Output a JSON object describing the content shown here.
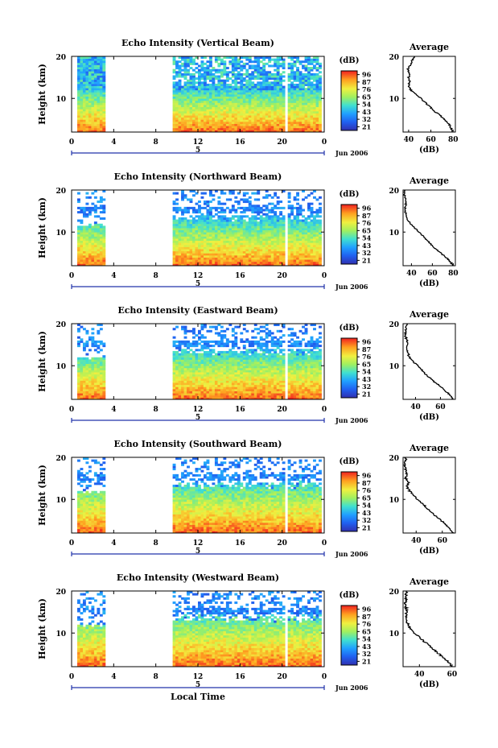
{
  "chart_data": [
    {
      "type": "heatmap",
      "title": "Echo Intensity (Vertical Beam)",
      "ylabel": "Height (km)",
      "xticks": [
        "0",
        "4",
        "8",
        "12",
        "16",
        "20",
        "0"
      ],
      "ylim": [
        2,
        20
      ],
      "yticks": [
        "20",
        "10"
      ],
      "date_label": "5",
      "month_label": "Jun 2006",
      "colorbar_unit": "(dB)",
      "colorbar_ticks": [
        "96",
        "87",
        "76",
        "65",
        "54",
        "43",
        "32",
        "21"
      ],
      "profile_title": "Average",
      "profile_xlabel": "(dB)",
      "profile_xticks": [
        "40",
        "60",
        "80"
      ],
      "profile_xlim": [
        35,
        82
      ],
      "profile_yticks": [
        "20",
        "10"
      ],
      "no_data_gaps": [
        [
          3.2,
          9.5
        ],
        [
          20.2,
          20.5
        ]
      ],
      "profile": {
        "height": [
          2,
          3,
          4,
          5,
          6,
          7,
          8,
          9,
          10,
          11,
          12,
          13,
          14,
          15,
          16,
          17,
          18,
          19,
          20
        ],
        "db": [
          80,
          78,
          76,
          72,
          68,
          63,
          59,
          55,
          51,
          46,
          42,
          40,
          41,
          40,
          41,
          39,
          42,
          43,
          45
        ]
      }
    },
    {
      "type": "heatmap",
      "title": "Echo Intensity (Northward Beam)",
      "ylabel": "Height (km)",
      "xticks": [
        "0",
        "4",
        "8",
        "12",
        "16",
        "20",
        "0"
      ],
      "ylim": [
        2,
        20
      ],
      "yticks": [
        "20",
        "10"
      ],
      "date_label": "5",
      "month_label": "Jun 2006",
      "colorbar_unit": "(dB)",
      "colorbar_ticks": [
        "96",
        "87",
        "76",
        "65",
        "54",
        "43",
        "32",
        "21"
      ],
      "profile_title": "Average",
      "profile_xlabel": "(dB)",
      "profile_xticks": [
        "40",
        "60",
        "80"
      ],
      "profile_xlim": [
        32,
        82
      ],
      "profile_yticks": [
        "20",
        "10"
      ],
      "no_data_gaps": [
        [
          3.2,
          9.5
        ],
        [
          20.2,
          20.5
        ]
      ],
      "profile": {
        "height": [
          2,
          3,
          4,
          5,
          6,
          7,
          8,
          9,
          10,
          11,
          12,
          13,
          14,
          15,
          16,
          17,
          18,
          19,
          20
        ],
        "db": [
          80,
          77,
          73,
          68,
          63,
          59,
          55,
          51,
          47,
          43,
          39,
          36,
          35,
          34,
          34,
          35,
          34,
          33,
          34
        ]
      }
    },
    {
      "type": "heatmap",
      "title": "Echo Intensity (Eastward Beam)",
      "ylabel": "Height (km)",
      "xticks": [
        "0",
        "4",
        "8",
        "12",
        "16",
        "20",
        "0"
      ],
      "ylim": [
        2,
        20
      ],
      "yticks": [
        "20",
        "10"
      ],
      "date_label": "5",
      "month_label": "Jun 2006",
      "colorbar_unit": "(dB)",
      "colorbar_ticks": [
        "96",
        "87",
        "76",
        "65",
        "54",
        "43",
        "32",
        "21"
      ],
      "profile_title": "Average",
      "profile_xlabel": "(dB)",
      "profile_xticks": [
        "40",
        "60"
      ],
      "profile_xlim": [
        30,
        72
      ],
      "profile_yticks": [
        "20",
        "10"
      ],
      "no_data_gaps": [
        [
          3.2,
          9.5
        ],
        [
          20.2,
          20.5
        ]
      ],
      "profile": {
        "height": [
          2,
          3,
          4,
          5,
          6,
          7,
          8,
          9,
          10,
          11,
          12,
          13,
          14,
          15,
          16,
          17,
          18,
          19,
          20
        ],
        "db": [
          70,
          68,
          64,
          60,
          56,
          52,
          48,
          45,
          42,
          38,
          35,
          34,
          33,
          33,
          33,
          32,
          32,
          32,
          33
        ]
      }
    },
    {
      "type": "heatmap",
      "title": "Echo Intensity (Southward Beam)",
      "ylabel": "Height (km)",
      "xticks": [
        "0",
        "4",
        "8",
        "12",
        "16",
        "20",
        "0"
      ],
      "ylim": [
        2,
        20
      ],
      "yticks": [
        "20",
        "10"
      ],
      "date_label": "5",
      "month_label": "Jun 2006",
      "colorbar_unit": "(dB)",
      "colorbar_ticks": [
        "96",
        "87",
        "76",
        "65",
        "54",
        "43",
        "32",
        "21"
      ],
      "profile_title": "Average",
      "profile_xlabel": "(dB)",
      "profile_xticks": [
        "40",
        "60"
      ],
      "profile_xlim": [
        30,
        70
      ],
      "profile_yticks": [
        "20",
        "10"
      ],
      "no_data_gaps": [
        [
          3.2,
          9.5
        ],
        [
          20.2,
          20.5
        ]
      ],
      "profile": {
        "height": [
          2,
          3,
          4,
          5,
          6,
          7,
          8,
          9,
          10,
          11,
          12,
          13,
          14,
          15,
          16,
          17,
          18,
          19,
          20
        ],
        "db": [
          68,
          66,
          63,
          59,
          55,
          52,
          48,
          45,
          41,
          38,
          35,
          33,
          34,
          32,
          33,
          32,
          31,
          32,
          32
        ]
      }
    },
    {
      "type": "heatmap",
      "title": "Echo Intensity (Westward Beam)",
      "ylabel": "Height (km)",
      "xticks": [
        "0",
        "4",
        "8",
        "12",
        "16",
        "20",
        "0"
      ],
      "ylim": [
        2,
        20
      ],
      "yticks": [
        "20",
        "10"
      ],
      "date_label": "5",
      "month_label": "Jun 2006",
      "xlabel": "Local Time",
      "colorbar_unit": "(dB)",
      "colorbar_ticks": [
        "96",
        "87",
        "76",
        "65",
        "54",
        "43",
        "32",
        "21"
      ],
      "profile_title": "Average",
      "profile_xlabel": "(dB)",
      "profile_xticks": [
        "40",
        "60"
      ],
      "profile_xlim": [
        30,
        62
      ],
      "profile_yticks": [
        "20",
        "10"
      ],
      "no_data_gaps": [
        [
          3.2,
          9.5
        ],
        [
          20.2,
          20.5
        ]
      ],
      "profile": {
        "height": [
          2,
          3,
          4,
          5,
          6,
          7,
          8,
          9,
          10,
          11,
          12,
          13,
          14,
          15,
          16,
          17,
          18,
          19,
          20
        ],
        "db": [
          60,
          58,
          55,
          52,
          49,
          46,
          43,
          40,
          37,
          35,
          33,
          32,
          32,
          32,
          32,
          31,
          32,
          32,
          32
        ]
      }
    }
  ]
}
